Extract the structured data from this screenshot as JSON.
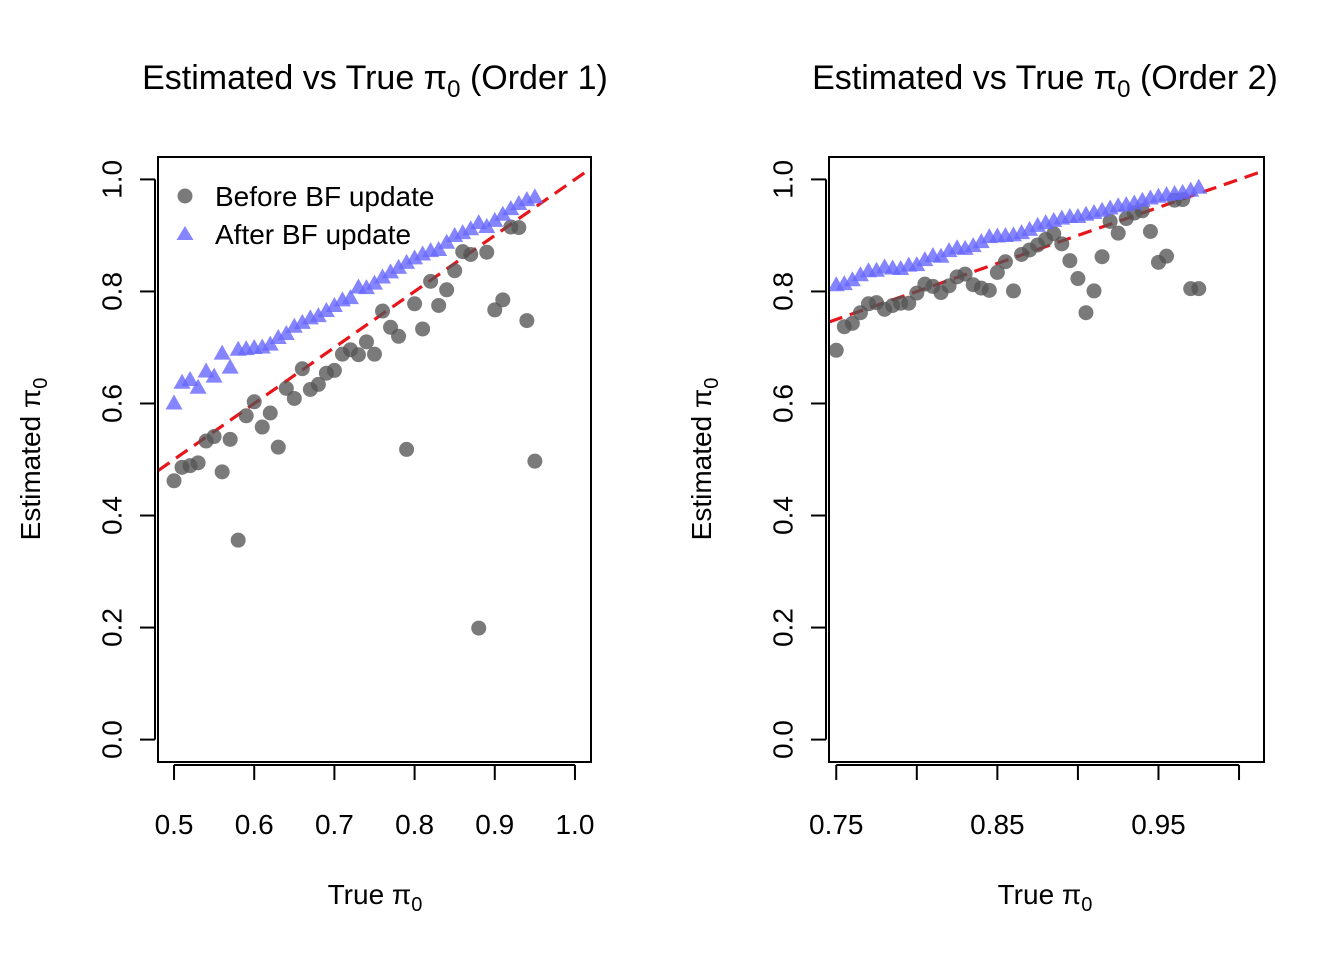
{
  "colors": {
    "before": "#555555",
    "after": "#6666ff",
    "reference_line": "#e8151b",
    "axis": "#000000"
  },
  "legend": {
    "before_label": "Before BF update",
    "after_label": "After BF update"
  },
  "chart_data": [
    {
      "type": "scatter",
      "title_prefix": "Estimated vs True ",
      "title_symbol": "π",
      "title_subscript": "0",
      "title_suffix": " (Order 1)",
      "xlabel_text": "True ",
      "ylabel_text": "Estimated ",
      "label_symbol": "π",
      "label_subscript": "0",
      "xlim": [
        0.48,
        1.02
      ],
      "ylim": [
        -0.04,
        1.04
      ],
      "xticks": [
        0.5,
        0.6,
        0.7,
        0.8,
        0.9,
        1.0
      ],
      "xtick_labels": [
        "0.5",
        "0.6",
        "0.7",
        "0.8",
        "0.9",
        "1.0"
      ],
      "yticks": [
        0.0,
        0.2,
        0.4,
        0.6,
        0.8,
        1.0
      ],
      "ytick_labels": [
        "0.0",
        "0.2",
        "0.4",
        "0.6",
        "0.8",
        "1.0"
      ],
      "legend_position": "top-left",
      "reference_line": {
        "slope": 1,
        "intercept": 0,
        "style": "dashed"
      },
      "series": [
        {
          "name": "Before BF update",
          "marker": "circle",
          "x": [
            0.5,
            0.51,
            0.52,
            0.53,
            0.54,
            0.55,
            0.56,
            0.57,
            0.58,
            0.59,
            0.6,
            0.61,
            0.62,
            0.63,
            0.64,
            0.65,
            0.66,
            0.67,
            0.68,
            0.69,
            0.7,
            0.71,
            0.72,
            0.73,
            0.74,
            0.75,
            0.76,
            0.77,
            0.78,
            0.79,
            0.8,
            0.81,
            0.82,
            0.83,
            0.84,
            0.85,
            0.86,
            0.87,
            0.88,
            0.89,
            0.9,
            0.91,
            0.92,
            0.93,
            0.94,
            0.95
          ],
          "y": [
            0.462,
            0.486,
            0.489,
            0.494,
            0.533,
            0.541,
            0.478,
            0.536,
            0.356,
            0.578,
            0.603,
            0.558,
            0.583,
            0.522,
            0.627,
            0.609,
            0.662,
            0.625,
            0.634,
            0.654,
            0.659,
            0.688,
            0.696,
            0.687,
            0.71,
            0.688,
            0.765,
            0.736,
            0.72,
            0.518,
            0.778,
            0.733,
            0.818,
            0.775,
            0.803,
            0.837,
            0.871,
            0.866,
            0.199,
            0.87,
            0.767,
            0.785,
            0.915,
            0.914,
            0.748,
            0.497
          ]
        },
        {
          "name": "After BF update",
          "marker": "triangle",
          "x": [
            0.5,
            0.51,
            0.52,
            0.53,
            0.54,
            0.55,
            0.56,
            0.57,
            0.58,
            0.59,
            0.6,
            0.61,
            0.62,
            0.63,
            0.64,
            0.65,
            0.66,
            0.67,
            0.68,
            0.69,
            0.7,
            0.71,
            0.72,
            0.73,
            0.74,
            0.75,
            0.76,
            0.77,
            0.78,
            0.79,
            0.8,
            0.81,
            0.82,
            0.83,
            0.84,
            0.85,
            0.86,
            0.87,
            0.88,
            0.89,
            0.9,
            0.91,
            0.92,
            0.93,
            0.94,
            0.95
          ],
          "y": [
            0.6,
            0.637,
            0.642,
            0.628,
            0.657,
            0.648,
            0.689,
            0.664,
            0.696,
            0.697,
            0.699,
            0.7,
            0.705,
            0.717,
            0.724,
            0.737,
            0.744,
            0.752,
            0.756,
            0.765,
            0.774,
            0.784,
            0.788,
            0.807,
            0.806,
            0.814,
            0.825,
            0.834,
            0.842,
            0.851,
            0.859,
            0.866,
            0.872,
            0.874,
            0.887,
            0.899,
            0.904,
            0.911,
            0.922,
            0.915,
            0.926,
            0.937,
            0.947,
            0.956,
            0.963,
            0.968
          ]
        }
      ]
    },
    {
      "type": "scatter",
      "title_prefix": "Estimated vs True ",
      "title_symbol": "π",
      "title_subscript": "0",
      "title_suffix": " (Order 2)",
      "xlabel_text": "True ",
      "ylabel_text": "Estimated ",
      "label_symbol": "π",
      "label_subscript": "0",
      "xlim": [
        0.7455,
        1.0155
      ],
      "ylim": [
        -0.04,
        1.04
      ],
      "xticks": [
        0.75,
        0.8,
        0.85,
        0.9,
        0.95,
        1.0
      ],
      "xtick_labels": [
        "0.75",
        "",
        "0.85",
        "",
        "0.95",
        ""
      ],
      "yticks": [
        0.0,
        0.2,
        0.4,
        0.6,
        0.8,
        1.0
      ],
      "ytick_labels": [
        "0.0",
        "0.2",
        "0.4",
        "0.6",
        "0.8",
        "1.0"
      ],
      "reference_line": {
        "slope": 1,
        "intercept": 0,
        "style": "dashed"
      },
      "series": [
        {
          "name": "Before BF update",
          "marker": "circle",
          "x": [
            0.75,
            0.755,
            0.76,
            0.765,
            0.77,
            0.775,
            0.78,
            0.785,
            0.79,
            0.795,
            0.8,
            0.805,
            0.81,
            0.815,
            0.82,
            0.825,
            0.83,
            0.835,
            0.84,
            0.845,
            0.85,
            0.855,
            0.86,
            0.865,
            0.87,
            0.875,
            0.88,
            0.885,
            0.89,
            0.895,
            0.9,
            0.905,
            0.91,
            0.915,
            0.92,
            0.925,
            0.93,
            0.935,
            0.94,
            0.945,
            0.95,
            0.955,
            0.96,
            0.965,
            0.97,
            0.975
          ],
          "y": [
            0.695,
            0.737,
            0.743,
            0.762,
            0.778,
            0.78,
            0.768,
            0.775,
            0.779,
            0.779,
            0.797,
            0.813,
            0.809,
            0.798,
            0.81,
            0.826,
            0.831,
            0.812,
            0.806,
            0.802,
            0.834,
            0.853,
            0.801,
            0.866,
            0.874,
            0.883,
            0.893,
            0.903,
            0.885,
            0.855,
            0.823,
            0.762,
            0.801,
            0.862,
            0.925,
            0.904,
            0.93,
            0.94,
            0.944,
            0.907,
            0.852,
            0.863,
            0.963,
            0.964,
            0.805,
            0.805
          ]
        },
        {
          "name": "After BF update",
          "marker": "triangle",
          "x": [
            0.75,
            0.755,
            0.76,
            0.765,
            0.77,
            0.775,
            0.78,
            0.785,
            0.79,
            0.795,
            0.8,
            0.805,
            0.81,
            0.815,
            0.82,
            0.825,
            0.83,
            0.835,
            0.84,
            0.845,
            0.85,
            0.855,
            0.86,
            0.865,
            0.87,
            0.875,
            0.88,
            0.885,
            0.89,
            0.895,
            0.9,
            0.905,
            0.91,
            0.915,
            0.92,
            0.925,
            0.93,
            0.935,
            0.94,
            0.945,
            0.95,
            0.955,
            0.96,
            0.965,
            0.97,
            0.975
          ],
          "y": [
            0.811,
            0.813,
            0.82,
            0.829,
            0.836,
            0.837,
            0.843,
            0.841,
            0.84,
            0.846,
            0.847,
            0.856,
            0.863,
            0.862,
            0.872,
            0.877,
            0.876,
            0.881,
            0.888,
            0.897,
            0.898,
            0.899,
            0.9,
            0.904,
            0.91,
            0.917,
            0.922,
            0.926,
            0.93,
            0.933,
            0.933,
            0.937,
            0.94,
            0.944,
            0.948,
            0.952,
            0.954,
            0.957,
            0.962,
            0.966,
            0.969,
            0.972,
            0.974,
            0.976,
            0.98,
            0.985
          ]
        }
      ]
    }
  ]
}
